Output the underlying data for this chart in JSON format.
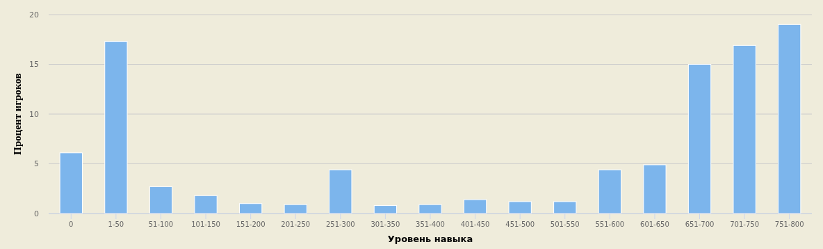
{
  "chart_data": {
    "type": "bar",
    "xlabel": "Уровень навыка",
    "ylabel": "Процент игроков",
    "categories": [
      "0",
      "1-50",
      "51-100",
      "101-150",
      "151-200",
      "201-250",
      "251-300",
      "301-350",
      "351-400",
      "401-450",
      "451-500",
      "501-550",
      "551-600",
      "601-650",
      "651-700",
      "701-750",
      "751-800"
    ],
    "values": [
      6.1,
      17.3,
      2.7,
      1.8,
      1.0,
      0.9,
      4.4,
      0.8,
      0.9,
      1.4,
      1.2,
      1.2,
      4.4,
      4.9,
      15.0,
      16.9,
      19.0
    ],
    "color": "#7cb5ec",
    "ylim": [
      0,
      20
    ],
    "yticks": [
      0,
      5,
      10,
      15,
      20
    ],
    "grid": "y"
  }
}
